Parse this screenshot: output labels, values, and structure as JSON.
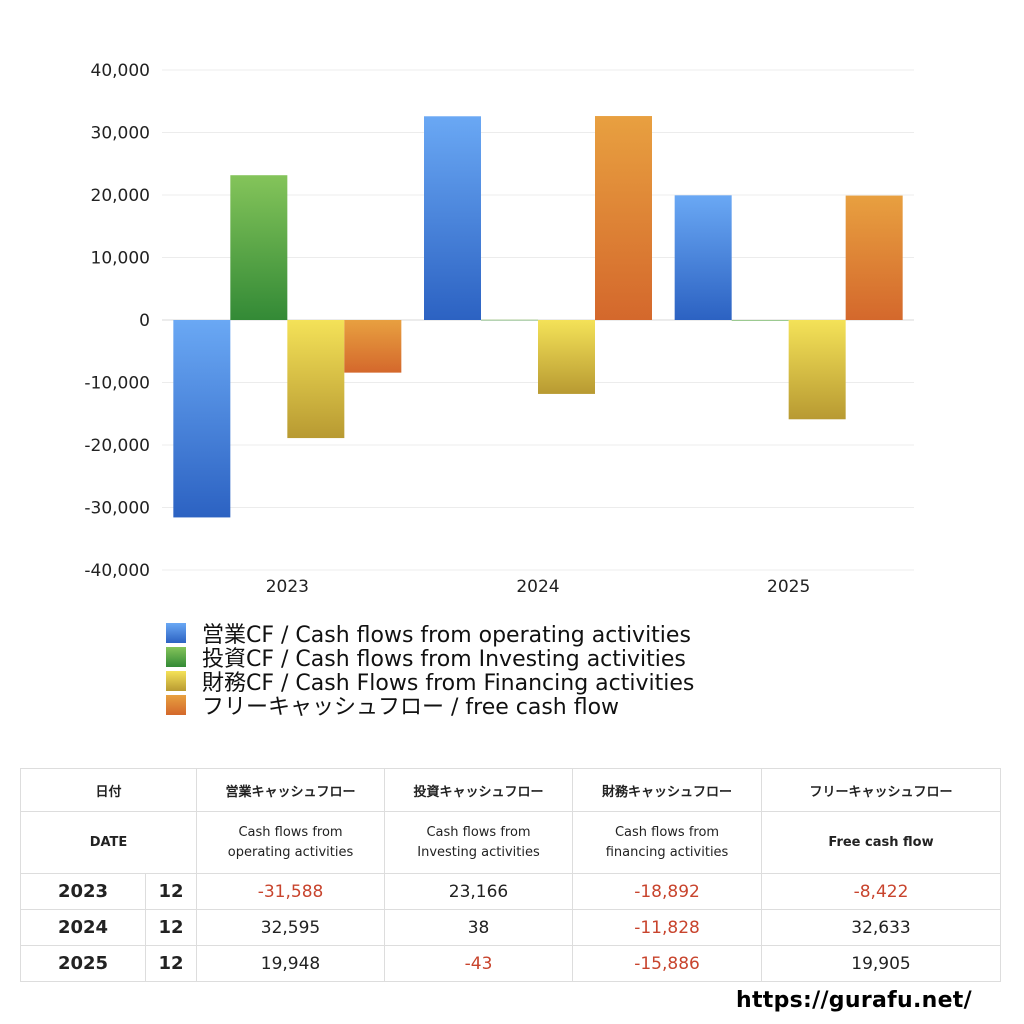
{
  "chart_data": {
    "type": "bar",
    "categories": [
      "2023",
      "2024",
      "2025"
    ],
    "series": [
      {
        "name": "営業CF / Cash flows from operating activities",
        "values": [
          -31588,
          32595,
          19948
        ],
        "color": "#4a82dc"
      },
      {
        "name": "投資CF / Cash flows from Investing activities",
        "values": [
          23166,
          38,
          -43
        ],
        "color": "#5aa84a"
      },
      {
        "name": "財務CF / Cash Flows from Financing activities",
        "values": [
          -18892,
          -11828,
          -15886
        ],
        "color": "#e0c84a"
      },
      {
        "name": "フリーキャッシュフロー / free cash flow",
        "values": [
          -8422,
          32633,
          19905
        ],
        "color": "#e08a3a"
      }
    ],
    "ylim": [
      -40000,
      40000
    ],
    "yticks": [
      40000,
      30000,
      20000,
      10000,
      0,
      -10000,
      -20000,
      -30000,
      -40000
    ],
    "ytick_labels": [
      "40,000",
      "30,000",
      "20,000",
      "10,000",
      "0",
      "-10,000",
      "-20,000",
      "-30,000",
      "-40,000"
    ],
    "grid": true,
    "legend_position": "bottom"
  },
  "table": {
    "header": {
      "date_label": "日付",
      "cols": [
        "営業キャッシュフロー",
        "投資キャッシュフロー",
        "財務キャッシュフロー",
        "フリーキャッシュフロー"
      ]
    },
    "subheader": {
      "date_label": "DATE",
      "cols": [
        [
          "Cash flows from",
          "operating activities"
        ],
        [
          "Cash flows from",
          "Investing activities"
        ],
        [
          "Cash flows from",
          "financing activities"
        ],
        [
          "Free cash flow"
        ]
      ]
    },
    "rows": [
      {
        "year": "2023",
        "month": "12",
        "values": [
          "-31,588",
          "23,166",
          "-18,892",
          "-8,422"
        ]
      },
      {
        "year": "2024",
        "month": "12",
        "values": [
          "32,595",
          "38",
          "-11,828",
          "32,633"
        ]
      },
      {
        "year": "2025",
        "month": "12",
        "values": [
          "19,948",
          "-43",
          "-15,886",
          "19,905"
        ]
      }
    ]
  },
  "site_url": "https://gurafu.net/"
}
